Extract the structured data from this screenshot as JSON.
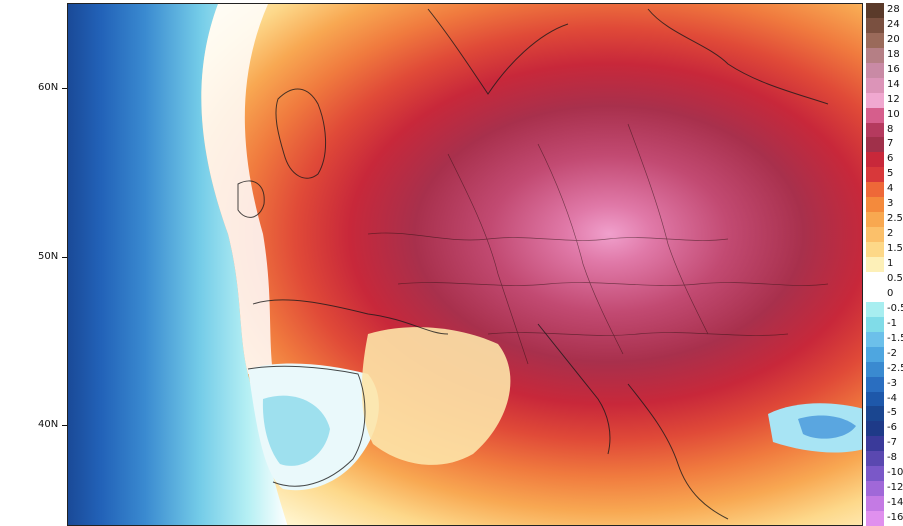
{
  "map": {
    "lat_labels": [
      "60N",
      "50N",
      "40N"
    ]
  },
  "legend": {
    "labels": [
      "28",
      "24",
      "20",
      "18",
      "16",
      "14",
      "12",
      "10",
      "8",
      "7",
      "6",
      "5",
      "4",
      "3",
      "2.5",
      "2",
      "1.5",
      "1",
      "0.5",
      "0",
      "-0.5",
      "-1",
      "-1.5",
      "-2",
      "-2.5",
      "-3",
      "-4",
      "-5",
      "-6",
      "-7",
      "-8",
      "-10",
      "-12",
      "-14",
      "-16"
    ],
    "colors": [
      "#5a3a2a",
      "#7a5040",
      "#9a6a5a",
      "#b57f85",
      "#c98aa5",
      "#dc94b8",
      "#f0a8d0",
      "#d65e8c",
      "#b53a5e",
      "#a0304a",
      "#c8283a",
      "#d8383a",
      "#ee6838",
      "#f48a3c",
      "#f8a850",
      "#fbc06a",
      "#fdd888",
      "#fdf0b8",
      "#ffffff",
      "#ffffff",
      "#a8eef0",
      "#80dce8",
      "#6cc0ea",
      "#4ea6e0",
      "#3a8ad0",
      "#2a6ec0",
      "#1e58aa",
      "#1a4690",
      "#1e3a88",
      "#3a3a9a",
      "#5a48b0",
      "#7a58c8",
      "#a068d8",
      "#c47ae4",
      "#e090ee"
    ]
  }
}
